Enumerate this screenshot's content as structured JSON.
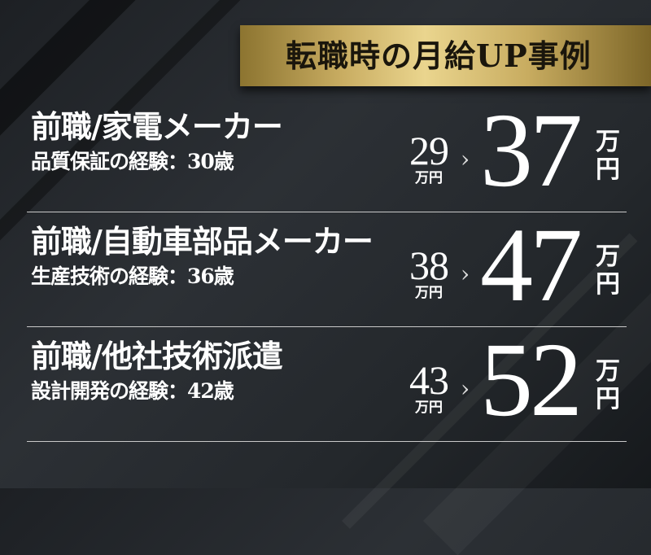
{
  "banner": {
    "title": "転職時の月給UP事例"
  },
  "cases": [
    {
      "title": "前職/家電メーカー",
      "subtitle": "品質保証の経験：30歳",
      "before": "29",
      "before_unit": "万円",
      "after": "37",
      "after_unit_top": "万",
      "after_unit_bottom": "円"
    },
    {
      "title": "前職/自動車部品メーカー",
      "subtitle": "生産技術の経験：36歳",
      "before": "38",
      "before_unit": "万円",
      "after": "47",
      "after_unit_top": "万",
      "after_unit_bottom": "円"
    },
    {
      "title": "前職/他社技術派遣",
      "subtitle": "設計開発の経験：42歳",
      "before": "43",
      "before_unit": "万円",
      "after": "52",
      "after_unit_top": "万",
      "after_unit_bottom": "円"
    }
  ],
  "arrow_icon": "chevron-right-icon",
  "colors": {
    "gold": "#c9ad62",
    "background": "#24282c",
    "text": "#ffffff"
  }
}
